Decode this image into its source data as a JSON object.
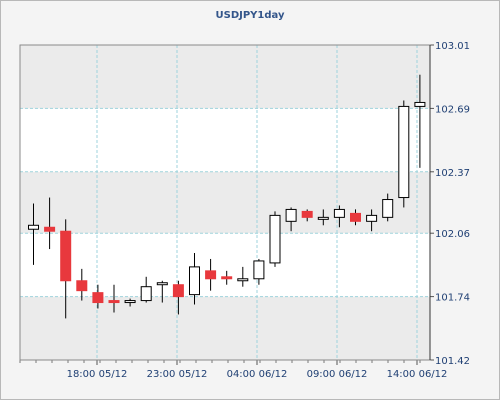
{
  "chart_data": {
    "type": "candlestick",
    "title": "USDJPY1day",
    "x_tick_labels": [
      "18:00 05/12",
      "23:00 05/12",
      "04:00 06/12",
      "09:00 06/12",
      "14:00 06/12"
    ],
    "y_ticks": [
      101.42,
      101.74,
      102.06,
      102.37,
      102.69,
      103.01
    ],
    "ylim": [
      101.42,
      103.01
    ],
    "grid": true,
    "colors": {
      "up_fill": "#ffffff",
      "down_fill": "#e8383d",
      "wick": "#000000",
      "grid": "#9fd3dc",
      "band": "#ebebeb"
    },
    "candles": [
      {
        "open": 102.08,
        "high": 102.21,
        "low": 101.9,
        "close": 102.1
      },
      {
        "open": 102.09,
        "high": 102.24,
        "low": 101.98,
        "close": 102.07
      },
      {
        "open": 102.07,
        "high": 102.13,
        "low": 101.63,
        "close": 101.82
      },
      {
        "open": 101.82,
        "high": 101.88,
        "low": 101.72,
        "close": 101.77
      },
      {
        "open": 101.76,
        "high": 101.8,
        "low": 101.68,
        "close": 101.71
      },
      {
        "open": 101.72,
        "high": 101.8,
        "low": 101.66,
        "close": 101.71
      },
      {
        "open": 101.71,
        "high": 101.73,
        "low": 101.69,
        "close": 101.72
      },
      {
        "open": 101.72,
        "high": 101.84,
        "low": 101.71,
        "close": 101.79
      },
      {
        "open": 101.8,
        "high": 101.82,
        "low": 101.71,
        "close": 101.81
      },
      {
        "open": 101.8,
        "high": 101.82,
        "low": 101.65,
        "close": 101.74
      },
      {
        "open": 101.75,
        "high": 101.96,
        "low": 101.7,
        "close": 101.89
      },
      {
        "open": 101.87,
        "high": 101.93,
        "low": 101.77,
        "close": 101.83
      },
      {
        "open": 101.84,
        "high": 101.87,
        "low": 101.8,
        "close": 101.83
      },
      {
        "open": 101.82,
        "high": 101.89,
        "low": 101.79,
        "close": 101.83
      },
      {
        "open": 101.83,
        "high": 101.93,
        "low": 101.8,
        "close": 101.92
      },
      {
        "open": 101.91,
        "high": 102.17,
        "low": 101.89,
        "close": 102.15
      },
      {
        "open": 102.12,
        "high": 102.19,
        "low": 102.07,
        "close": 102.18
      },
      {
        "open": 102.17,
        "high": 102.18,
        "low": 102.12,
        "close": 102.14
      },
      {
        "open": 102.13,
        "high": 102.18,
        "low": 102.1,
        "close": 102.14
      },
      {
        "open": 102.14,
        "high": 102.2,
        "low": 102.09,
        "close": 102.18
      },
      {
        "open": 102.16,
        "high": 102.18,
        "low": 102.1,
        "close": 102.12
      },
      {
        "open": 102.12,
        "high": 102.18,
        "low": 102.07,
        "close": 102.15
      },
      {
        "open": 102.14,
        "high": 102.26,
        "low": 102.12,
        "close": 102.23
      },
      {
        "open": 102.24,
        "high": 102.73,
        "low": 102.19,
        "close": 102.7
      },
      {
        "open": 102.7,
        "high": 102.86,
        "low": 102.39,
        "close": 102.72
      }
    ]
  }
}
